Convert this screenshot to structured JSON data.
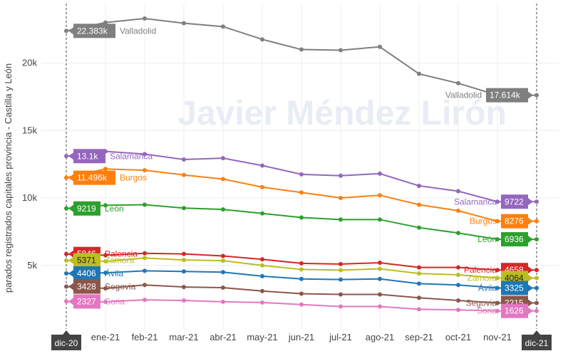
{
  "chart_data": {
    "type": "line",
    "ylabel": "parados registrados capitales provincia - Castilla y León",
    "watermark": "Javier Méndez Lirón",
    "x": [
      "dic-20",
      "ene-21",
      "feb-21",
      "mar-21",
      "abr-21",
      "may-21",
      "jun-21",
      "jul-21",
      "ago-21",
      "sep-21",
      "oct-21",
      "nov-21",
      "dic-21"
    ],
    "x_tick_labels": [
      "ene-21",
      "feb-21",
      "mar-21",
      "abr-21",
      "may-21",
      "jun-21",
      "jul-21",
      "ago-21",
      "sep-21",
      "oct-21",
      "nov-21"
    ],
    "x_end_labels": [
      "dic-20",
      "dic-21"
    ],
    "y_ticks": [
      5000,
      10000,
      15000,
      20000
    ],
    "y_tick_labels": [
      "5k",
      "10k",
      "15k",
      "20k"
    ],
    "ylim": [
      0,
      24200
    ],
    "grid": true,
    "legend": "none",
    "series": [
      {
        "name": "Valladolid",
        "color": "#7f7f7f",
        "start_label": "22.383k",
        "end_label": "17.614k",
        "values": [
          22383,
          23000,
          23300,
          22950,
          22700,
          21750,
          21000,
          20950,
          21200,
          19200,
          18500,
          17614,
          17614
        ]
      },
      {
        "name": "Salamanca",
        "color": "#9467bd",
        "start_label": "13.1k",
        "end_label": "9722",
        "values": [
          13100,
          13450,
          13250,
          12850,
          12950,
          12400,
          11750,
          11650,
          11800,
          10900,
          10500,
          9722,
          9722
        ]
      },
      {
        "name": "Burgos",
        "color": "#ff7f0e",
        "start_label": "11.496k",
        "end_label": "8276",
        "values": [
          11496,
          12150,
          12050,
          11700,
          11400,
          10800,
          10400,
          10000,
          10200,
          9500,
          9050,
          8276,
          8276
        ]
      },
      {
        "name": "León",
        "color": "#2ca02c",
        "start_label": "9219",
        "end_label": "6936",
        "values": [
          9219,
          9450,
          9500,
          9250,
          9150,
          8850,
          8550,
          8400,
          8400,
          7800,
          7400,
          6936,
          6936
        ]
      },
      {
        "name": "Palencia",
        "color": "#d62728",
        "start_label": "5846",
        "end_label": "4658",
        "values": [
          5846,
          5750,
          5900,
          5850,
          5700,
          5450,
          5150,
          5100,
          5200,
          4850,
          4850,
          4658,
          4658
        ]
      },
      {
        "name": "Zamora",
        "color": "#bcbd22",
        "start_label": "5371",
        "end_label": "4064",
        "values": [
          5371,
          5300,
          5550,
          5400,
          5350,
          5000,
          4700,
          4650,
          4750,
          4400,
          4300,
          4064,
          4064
        ]
      },
      {
        "name": "Ávila",
        "color": "#1f77b4",
        "start_label": "4406",
        "end_label": "3325",
        "values": [
          4406,
          4450,
          4600,
          4550,
          4500,
          4200,
          4000,
          3950,
          4000,
          3650,
          3550,
          3325,
          3325
        ]
      },
      {
        "name": "Segovia",
        "color": "#8c564b",
        "start_label": "3428",
        "end_label": "2215",
        "values": [
          3428,
          3300,
          3550,
          3400,
          3350,
          3100,
          2900,
          2850,
          2850,
          2600,
          2400,
          2215,
          2215
        ]
      },
      {
        "name": "Soria",
        "color": "#e377c2",
        "start_label": "2327",
        "end_label": "1626",
        "values": [
          2327,
          2300,
          2450,
          2400,
          2300,
          2250,
          2100,
          1950,
          1950,
          1750,
          1700,
          1626,
          1626
        ]
      }
    ]
  }
}
